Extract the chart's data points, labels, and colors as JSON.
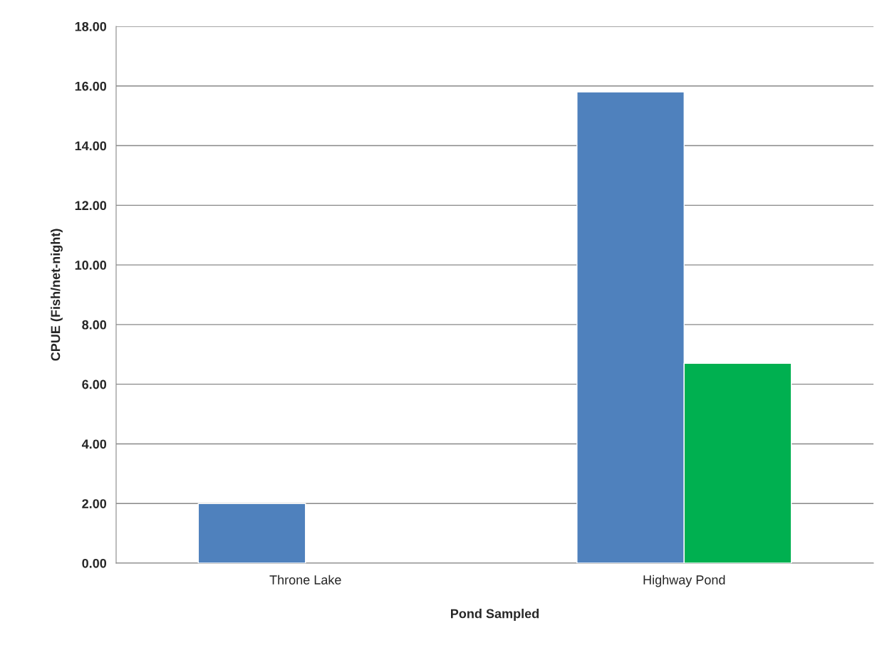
{
  "chart_data": {
    "type": "bar",
    "xlabel": "Pond Sampled",
    "ylabel": "CPUE (Fish/net-night)",
    "categories": [
      "Throne Lake",
      "Highway Pond"
    ],
    "series": [
      {
        "color": "#4f81bd",
        "values": [
          2.0,
          15.8
        ]
      },
      {
        "color": "#00b050",
        "values": [
          null,
          6.7
        ]
      }
    ],
    "ylim": [
      0,
      18
    ],
    "yticks": [
      {
        "value": 0,
        "label": "0.00"
      },
      {
        "value": 2,
        "label": "2.00"
      },
      {
        "value": 4,
        "label": "4.00"
      },
      {
        "value": 6,
        "label": "6.00"
      },
      {
        "value": 8,
        "label": "8.00"
      },
      {
        "value": 10,
        "label": "10.00"
      },
      {
        "value": 12,
        "label": "12.00"
      },
      {
        "value": 14,
        "label": "14.00"
      },
      {
        "value": 16,
        "label": "16.00"
      },
      {
        "value": 18,
        "label": "18.00"
      }
    ],
    "grid": "y",
    "legend": false
  }
}
